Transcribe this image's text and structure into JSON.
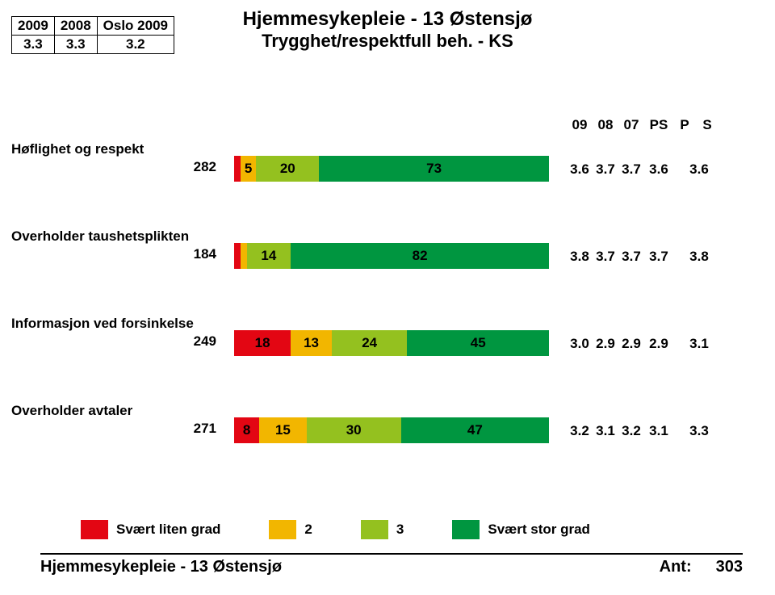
{
  "colors": {
    "red": "#e30613",
    "yellow": "#f2b600",
    "lightgreen": "#94c11f",
    "green": "#009640",
    "black": "#000000",
    "white": "#ffffff"
  },
  "summary": {
    "headers": [
      "2009",
      "2008",
      "Oslo 2009"
    ],
    "values": [
      "3.3",
      "3.3",
      "3.2"
    ]
  },
  "title": {
    "line1": "Hjemmesykepleie - 13 Østensjø",
    "line2": "Trygghet/respektfull beh. - KS"
  },
  "col_headers": [
    "09",
    "08",
    "07",
    "PS",
    "P",
    "S"
  ],
  "rows": [
    {
      "label": "Høflighet og respekt",
      "n": "282",
      "segments": [
        {
          "pct": 2,
          "label": "",
          "color_key": "red"
        },
        {
          "pct": 5,
          "label": "5",
          "color_key": "yellow"
        },
        {
          "pct": 20,
          "label": "20",
          "color_key": "lightgreen"
        },
        {
          "pct": 73,
          "label": "73",
          "color_key": "green"
        }
      ],
      "stats": [
        "3.6",
        "3.7",
        "3.7",
        "3.6",
        "",
        "3.6"
      ]
    },
    {
      "label": "Overholder taushetsplikten",
      "n": "184",
      "segments": [
        {
          "pct": 2,
          "label": "",
          "color_key": "red"
        },
        {
          "pct": 2,
          "label": "",
          "color_key": "yellow"
        },
        {
          "pct": 14,
          "label": "14",
          "color_key": "lightgreen"
        },
        {
          "pct": 82,
          "label": "82",
          "color_key": "green"
        }
      ],
      "stats": [
        "3.8",
        "3.7",
        "3.7",
        "3.7",
        "",
        "3.8"
      ]
    },
    {
      "label": "Informasjon ved forsinkelse",
      "n": "249",
      "segments": [
        {
          "pct": 18,
          "label": "18",
          "color_key": "red"
        },
        {
          "pct": 13,
          "label": "13",
          "color_key": "yellow"
        },
        {
          "pct": 24,
          "label": "24",
          "color_key": "lightgreen"
        },
        {
          "pct": 45,
          "label": "45",
          "color_key": "green"
        }
      ],
      "stats": [
        "3.0",
        "2.9",
        "2.9",
        "2.9",
        "",
        "3.1"
      ]
    },
    {
      "label": "Overholder avtaler",
      "n": "271",
      "segments": [
        {
          "pct": 8,
          "label": "8",
          "color_key": "red"
        },
        {
          "pct": 15,
          "label": "15",
          "color_key": "yellow"
        },
        {
          "pct": 30,
          "label": "30",
          "color_key": "lightgreen"
        },
        {
          "pct": 47,
          "label": "47",
          "color_key": "green"
        }
      ],
      "stats": [
        "3.2",
        "3.1",
        "3.2",
        "3.1",
        "",
        "3.3"
      ]
    }
  ],
  "legend": [
    {
      "color_key": "red",
      "label": "Svært liten grad"
    },
    {
      "color_key": "yellow",
      "label": "2"
    },
    {
      "color_key": "lightgreen",
      "label": "3"
    },
    {
      "color_key": "green",
      "label": "Svært stor grad"
    }
  ],
  "footer": {
    "left": "Hjemmesykepleie - 13 Østensjø",
    "ant_label": "Ant:",
    "ant_value": "303"
  }
}
